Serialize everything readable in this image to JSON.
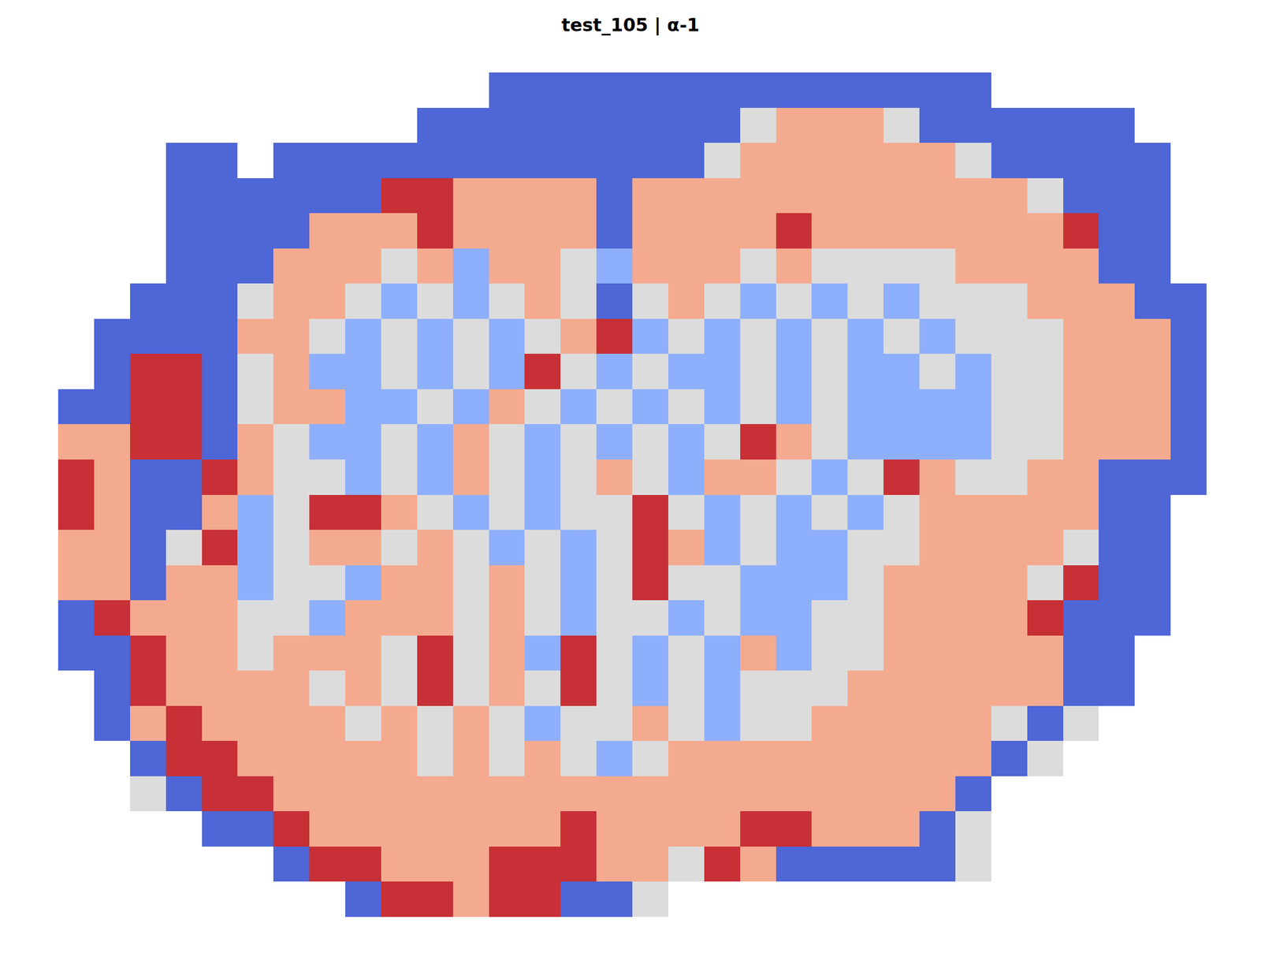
{
  "chart_data": {
    "type": "heatmap",
    "title": "test_105 | α-1",
    "zlim": [
      -1,
      1
    ],
    "tick_labels": false,
    "cells": [
      [
        null,
        null,
        null,
        null,
        null,
        null,
        null,
        null,
        null,
        null,
        null,
        null,
        -0.85,
        -0.85,
        -0.85,
        -0.85,
        -0.85,
        -0.85,
        -0.85,
        -0.85,
        -0.85,
        -0.85,
        -0.85,
        -0.85,
        -0.85,
        -0.85,
        null,
        null,
        null,
        null,
        null,
        null
      ],
      [
        null,
        null,
        null,
        null,
        null,
        null,
        null,
        null,
        null,
        null,
        -0.85,
        -0.85,
        -0.85,
        -0.85,
        -0.85,
        -0.85,
        -0.85,
        -0.85,
        -0.85,
        0,
        0.35,
        0.35,
        0.35,
        0,
        -0.85,
        -0.85,
        -0.85,
        -0.85,
        -0.85,
        -0.85,
        null,
        null
      ],
      [
        null,
        null,
        null,
        -0.85,
        -0.85,
        null,
        -0.85,
        -0.85,
        -0.85,
        -0.85,
        -0.85,
        -0.85,
        -0.85,
        -0.85,
        -0.85,
        -0.85,
        -0.85,
        -0.85,
        0,
        0.35,
        0.35,
        0.35,
        0.35,
        0.35,
        0.35,
        0,
        -0.85,
        -0.85,
        -0.85,
        -0.85,
        -0.85,
        null
      ],
      [
        null,
        null,
        null,
        -0.85,
        -0.85,
        -0.85,
        -0.85,
        -0.85,
        -0.85,
        0.85,
        0.85,
        0.35,
        0.35,
        0.35,
        0.35,
        -0.85,
        0.35,
        0.35,
        0.35,
        0.35,
        0.35,
        0.35,
        0.35,
        0.35,
        0.35,
        0.35,
        0.35,
        0,
        -0.85,
        -0.85,
        -0.85,
        null
      ],
      [
        null,
        null,
        null,
        -0.85,
        -0.85,
        -0.85,
        -0.85,
        0.35,
        0.35,
        0.35,
        0.85,
        0.35,
        0.35,
        0.35,
        0.35,
        -0.85,
        0.35,
        0.35,
        0.35,
        0.35,
        0.85,
        0.35,
        0.35,
        0.35,
        0.35,
        0.35,
        0.35,
        0.35,
        0.85,
        -0.85,
        -0.85,
        null
      ],
      [
        null,
        null,
        null,
        -0.85,
        -0.85,
        -0.85,
        0.35,
        0.35,
        0.35,
        0,
        0.35,
        -0.4,
        0.35,
        0.35,
        0,
        -0.4,
        0.35,
        0.35,
        0.35,
        0,
        0.35,
        0,
        0,
        0,
        0,
        0.35,
        0.35,
        0.35,
        0.35,
        -0.85,
        -0.85,
        null
      ],
      [
        null,
        null,
        -0.85,
        -0.85,
        -0.85,
        0,
        0.35,
        0.35,
        0,
        -0.4,
        0,
        -0.4,
        0,
        0.35,
        0,
        -0.85,
        0,
        0.35,
        0,
        -0.4,
        0,
        -0.4,
        0,
        -0.4,
        0,
        0,
        0,
        0.35,
        0.35,
        0.35,
        -0.85,
        -0.85
      ],
      [
        null,
        -0.85,
        -0.85,
        -0.85,
        -0.85,
        0.35,
        0.35,
        0,
        -0.4,
        0,
        -0.4,
        0,
        -0.4,
        0,
        0.35,
        0.85,
        -0.4,
        0,
        -0.4,
        0,
        -0.4,
        0,
        -0.4,
        0,
        -0.4,
        0,
        0,
        0,
        0.35,
        0.35,
        0.35,
        -0.85
      ],
      [
        null,
        -0.85,
        0.85,
        0.85,
        -0.85,
        0,
        0.35,
        -0.4,
        -0.4,
        0,
        -0.4,
        0,
        -0.4,
        0.85,
        0,
        -0.4,
        0,
        -0.4,
        -0.4,
        0,
        -0.4,
        0,
        -0.4,
        -0.4,
        0,
        -0.4,
        0,
        0,
        0.35,
        0.35,
        0.35,
        -0.85
      ],
      [
        -0.85,
        -0.85,
        0.85,
        0.85,
        -0.85,
        0,
        0.35,
        0.35,
        -0.4,
        -0.4,
        0,
        -0.4,
        0.35,
        0,
        -0.4,
        0,
        -0.4,
        0,
        -0.4,
        0,
        -0.4,
        0,
        -0.4,
        -0.4,
        -0.4,
        -0.4,
        0,
        0,
        0.35,
        0.35,
        0.35,
        -0.85
      ],
      [
        0.35,
        0.35,
        0.85,
        0.85,
        -0.85,
        0.35,
        0,
        -0.4,
        -0.4,
        0,
        -0.4,
        0.35,
        0,
        -0.4,
        0,
        -0.4,
        0,
        -0.4,
        0,
        0.85,
        0.35,
        0,
        -0.4,
        -0.4,
        -0.4,
        -0.4,
        0,
        0,
        0.35,
        0.35,
        0.35,
        -0.85
      ],
      [
        0.85,
        0.35,
        -0.85,
        -0.85,
        0.85,
        0.35,
        0,
        0,
        -0.4,
        0,
        -0.4,
        0.35,
        0,
        -0.4,
        0,
        0.35,
        0,
        -0.4,
        0.35,
        0.35,
        0,
        -0.4,
        0,
        0.85,
        0.35,
        0,
        0,
        0.35,
        0.35,
        -0.85,
        -0.85,
        -0.85
      ],
      [
        0.85,
        0.35,
        -0.85,
        -0.85,
        0.35,
        -0.4,
        0,
        0.85,
        0.85,
        0.35,
        0,
        -0.4,
        0,
        -0.4,
        0,
        0,
        0.85,
        0,
        -0.4,
        0,
        -0.4,
        0,
        -0.4,
        0,
        0.35,
        0.35,
        0.35,
        0.35,
        0.35,
        -0.85,
        -0.85,
        null
      ],
      [
        0.35,
        0.35,
        -0.85,
        0,
        0.85,
        -0.4,
        0,
        0.35,
        0.35,
        0,
        0.35,
        0,
        -0.4,
        0,
        -0.4,
        0,
        0.85,
        0.35,
        -0.4,
        0,
        -0.4,
        -0.4,
        0,
        0,
        0.35,
        0.35,
        0.35,
        0.35,
        0,
        -0.85,
        -0.85,
        null
      ],
      [
        0.35,
        0.35,
        -0.85,
        0.35,
        0.35,
        -0.4,
        0,
        0,
        -0.4,
        0.35,
        0.35,
        0,
        0.35,
        0,
        -0.4,
        0,
        0.85,
        0,
        0,
        -0.4,
        -0.4,
        -0.4,
        0,
        0.35,
        0.35,
        0.35,
        0.35,
        0,
        0.85,
        -0.85,
        -0.85,
        null
      ],
      [
        -0.85,
        0.85,
        0.35,
        0.35,
        0.35,
        0,
        0,
        -0.4,
        0.35,
        0.35,
        0.35,
        0,
        0.35,
        0,
        -0.4,
        0,
        0,
        -0.4,
        0,
        -0.4,
        -0.4,
        0,
        0,
        0.35,
        0.35,
        0.35,
        0.35,
        0.85,
        -0.85,
        -0.85,
        -0.85,
        null
      ],
      [
        -0.85,
        -0.85,
        0.85,
        0.35,
        0.35,
        0,
        0.35,
        0.35,
        0.35,
        0,
        0.85,
        0,
        0.35,
        -0.4,
        0.85,
        0,
        -0.4,
        0,
        -0.4,
        0.35,
        -0.4,
        0,
        0,
        0.35,
        0.35,
        0.35,
        0.35,
        0.35,
        -0.85,
        -0.85,
        null,
        null
      ],
      [
        null,
        -0.85,
        0.85,
        0.35,
        0.35,
        0.35,
        0.35,
        0,
        0.35,
        0,
        0.85,
        0,
        0.35,
        0,
        0.85,
        0,
        -0.4,
        0,
        -0.4,
        0,
        0,
        0,
        0.35,
        0.35,
        0.35,
        0.35,
        0.35,
        0.35,
        -0.85,
        -0.85,
        null,
        null
      ],
      [
        null,
        -0.85,
        0.35,
        0.85,
        0.35,
        0.35,
        0.35,
        0.35,
        0,
        0.35,
        0,
        0.35,
        0,
        -0.4,
        0,
        0,
        0.35,
        0,
        -0.4,
        0,
        0,
        0.35,
        0.35,
        0.35,
        0.35,
        0.35,
        0,
        -0.85,
        0,
        null,
        null,
        null
      ],
      [
        null,
        null,
        -0.85,
        0.85,
        0.85,
        0.35,
        0.35,
        0.35,
        0.35,
        0.35,
        0,
        0.35,
        0,
        0.35,
        0,
        -0.4,
        0,
        0.35,
        0.35,
        0.35,
        0.35,
        0.35,
        0.35,
        0.35,
        0.35,
        0.35,
        -0.85,
        0,
        null,
        null,
        null,
        null
      ],
      [
        null,
        null,
        0,
        -0.85,
        0.85,
        0.85,
        0.35,
        0.35,
        0.35,
        0.35,
        0.35,
        0.35,
        0.35,
        0.35,
        0.35,
        0.35,
        0.35,
        0.35,
        0.35,
        0.35,
        0.35,
        0.35,
        0.35,
        0.35,
        0.35,
        -0.85,
        null,
        null,
        null,
        null,
        null,
        null
      ],
      [
        null,
        null,
        null,
        null,
        -0.85,
        -0.85,
        0.85,
        0.35,
        0.35,
        0.35,
        0.35,
        0.35,
        0.35,
        0.35,
        0.85,
        0.35,
        0.35,
        0.35,
        0.35,
        0.85,
        0.85,
        0.35,
        0.35,
        0.35,
        -0.85,
        0,
        null,
        null,
        null,
        null,
        null,
        null
      ],
      [
        null,
        null,
        null,
        null,
        null,
        null,
        -0.85,
        0.85,
        0.85,
        0.35,
        0.35,
        0.35,
        0.85,
        0.85,
        0.85,
        0.35,
        0.35,
        0,
        0.85,
        0.35,
        -0.85,
        -0.85,
        -0.85,
        -0.85,
        -0.85,
        0,
        null,
        null,
        null,
        null,
        null,
        null
      ],
      [
        null,
        null,
        null,
        null,
        null,
        null,
        null,
        null,
        -0.85,
        0.85,
        0.85,
        0.35,
        0.85,
        0.85,
        -0.85,
        -0.85,
        0,
        null,
        null,
        null,
        null,
        null,
        null,
        null,
        null,
        null,
        null,
        null,
        null,
        null,
        null,
        null
      ]
    ]
  }
}
